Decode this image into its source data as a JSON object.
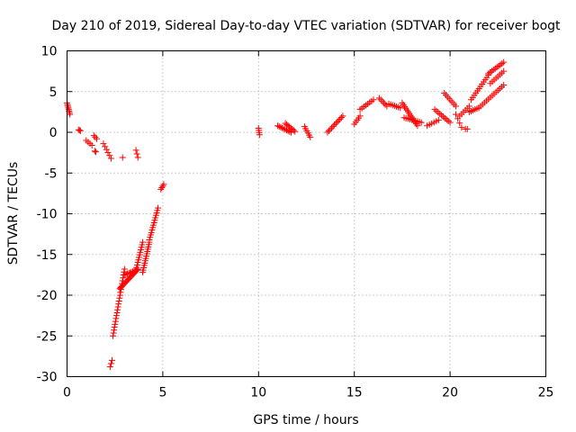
{
  "chart_data": {
    "type": "scatter",
    "title": "Day 210 of 2019, Sidereal Day-to-day VTEC variation (SDTVAR) for receiver bogt",
    "xlabel": "GPS time / hours",
    "ylabel": "SDTVAR / TECUs",
    "xlim": [
      0,
      25
    ],
    "ylim": [
      -30,
      10
    ],
    "grid": true,
    "marker": "+",
    "color": "#ff0000",
    "xticks": [
      0,
      5,
      10,
      15,
      20,
      25
    ],
    "xtick_labels": [
      "0",
      "5",
      "10",
      "15",
      "20",
      "25"
    ],
    "yticks": [
      10,
      5,
      0,
      -5,
      -10,
      -15,
      -20,
      -25,
      -30
    ],
    "ytick_labels": [
      "10",
      "5",
      "0",
      "-5",
      "-10",
      "-15",
      "-20",
      "-25",
      "-30"
    ],
    "series": [
      {
        "name": "SDTVAR",
        "segments": [
          {
            "x0": 0.0,
            "x1": 0.15,
            "y0": 3.6,
            "y1": 2.2,
            "n": 8
          },
          {
            "x0": 0.6,
            "x1": 0.7,
            "y0": 0.3,
            "y1": 0.2,
            "n": 3
          },
          {
            "x0": 1.0,
            "x1": 1.3,
            "y0": -1.0,
            "y1": -1.6,
            "n": 4
          },
          {
            "x0": 1.4,
            "x1": 1.55,
            "y0": -0.4,
            "y1": -0.8,
            "n": 3
          },
          {
            "x0": 1.45,
            "x1": 1.5,
            "y0": -2.3,
            "y1": -2.4,
            "n": 2
          },
          {
            "x0": 1.9,
            "x1": 2.3,
            "y0": -1.4,
            "y1": -3.2,
            "n": 6
          },
          {
            "x0": 2.25,
            "x1": 2.35,
            "y0": -28.8,
            "y1": -28.0,
            "n": 3
          },
          {
            "x0": 2.4,
            "x1": 3.0,
            "y0": -25.0,
            "y1": -16.8,
            "n": 24
          },
          {
            "x0": 2.75,
            "x1": 3.7,
            "y0": -19.2,
            "y1": -16.8,
            "n": 18
          },
          {
            "x0": 3.0,
            "x1": 3.65,
            "y0": -17.5,
            "y1": -16.9,
            "n": 10
          },
          {
            "x0": 3.6,
            "x1": 3.95,
            "y0": -16.9,
            "y1": -13.5,
            "n": 12
          },
          {
            "x0": 3.95,
            "x1": 4.3,
            "y0": -17.2,
            "y1": -13.5,
            "n": 14
          },
          {
            "x0": 4.3,
            "x1": 4.75,
            "y0": -13.2,
            "y1": -9.3,
            "n": 14
          },
          {
            "x0": 4.9,
            "x1": 5.05,
            "y0": -7.0,
            "y1": -6.4,
            "n": 4
          },
          {
            "x0": 2.9,
            "x1": 2.9,
            "y0": -3.1,
            "y1": -3.1,
            "n": 1
          },
          {
            "x0": 3.6,
            "x1": 3.7,
            "y0": -2.2,
            "y1": -3.1,
            "n": 3
          },
          {
            "x0": 10.0,
            "x1": 10.05,
            "y0": 0.5,
            "y1": -0.3,
            "n": 4
          },
          {
            "x0": 11.0,
            "x1": 11.7,
            "y0": 0.8,
            "y1": 0.0,
            "n": 10
          },
          {
            "x0": 11.4,
            "x1": 11.9,
            "y0": 1.1,
            "y1": 0.1,
            "n": 8
          },
          {
            "x0": 12.4,
            "x1": 12.7,
            "y0": 0.7,
            "y1": -0.6,
            "n": 6
          },
          {
            "x0": 13.6,
            "x1": 14.4,
            "y0": 0.0,
            "y1": 2.0,
            "n": 12
          },
          {
            "x0": 15.0,
            "x1": 15.3,
            "y0": 1.0,
            "y1": 2.0,
            "n": 5
          },
          {
            "x0": 15.3,
            "x1": 16.0,
            "y0": 2.8,
            "y1": 4.0,
            "n": 8
          },
          {
            "x0": 16.3,
            "x1": 16.7,
            "y0": 4.2,
            "y1": 3.2,
            "n": 6
          },
          {
            "x0": 16.8,
            "x1": 17.4,
            "y0": 3.5,
            "y1": 3.0,
            "n": 7
          },
          {
            "x0": 17.5,
            "x1": 18.3,
            "y0": 3.6,
            "y1": 0.8,
            "n": 14
          },
          {
            "x0": 17.6,
            "x1": 18.5,
            "y0": 1.8,
            "y1": 1.2,
            "n": 10
          },
          {
            "x0": 18.8,
            "x1": 19.4,
            "y0": 0.8,
            "y1": 1.5,
            "n": 6
          },
          {
            "x0": 19.2,
            "x1": 20.0,
            "y0": 2.8,
            "y1": 1.2,
            "n": 10
          },
          {
            "x0": 19.7,
            "x1": 20.3,
            "y0": 4.8,
            "y1": 3.2,
            "n": 8
          },
          {
            "x0": 20.3,
            "x1": 20.6,
            "y0": 2.2,
            "y1": 0.6,
            "n": 4
          },
          {
            "x0": 20.8,
            "x1": 20.9,
            "y0": 0.4,
            "y1": 0.4,
            "n": 2
          },
          {
            "x0": 20.5,
            "x1": 21.0,
            "y0": 2.0,
            "y1": 3.2,
            "n": 6
          },
          {
            "x0": 21.0,
            "x1": 21.5,
            "y0": 2.5,
            "y1": 3.0,
            "n": 6
          },
          {
            "x0": 21.1,
            "x1": 22.0,
            "y0": 4.0,
            "y1": 7.0,
            "n": 12
          },
          {
            "x0": 22.0,
            "x1": 22.8,
            "y0": 7.2,
            "y1": 8.6,
            "n": 10
          },
          {
            "x0": 21.5,
            "x1": 22.8,
            "y0": 3.0,
            "y1": 5.8,
            "n": 14
          },
          {
            "x0": 22.1,
            "x1": 22.8,
            "y0": 6.0,
            "y1": 7.5,
            "n": 8
          }
        ]
      }
    ]
  }
}
